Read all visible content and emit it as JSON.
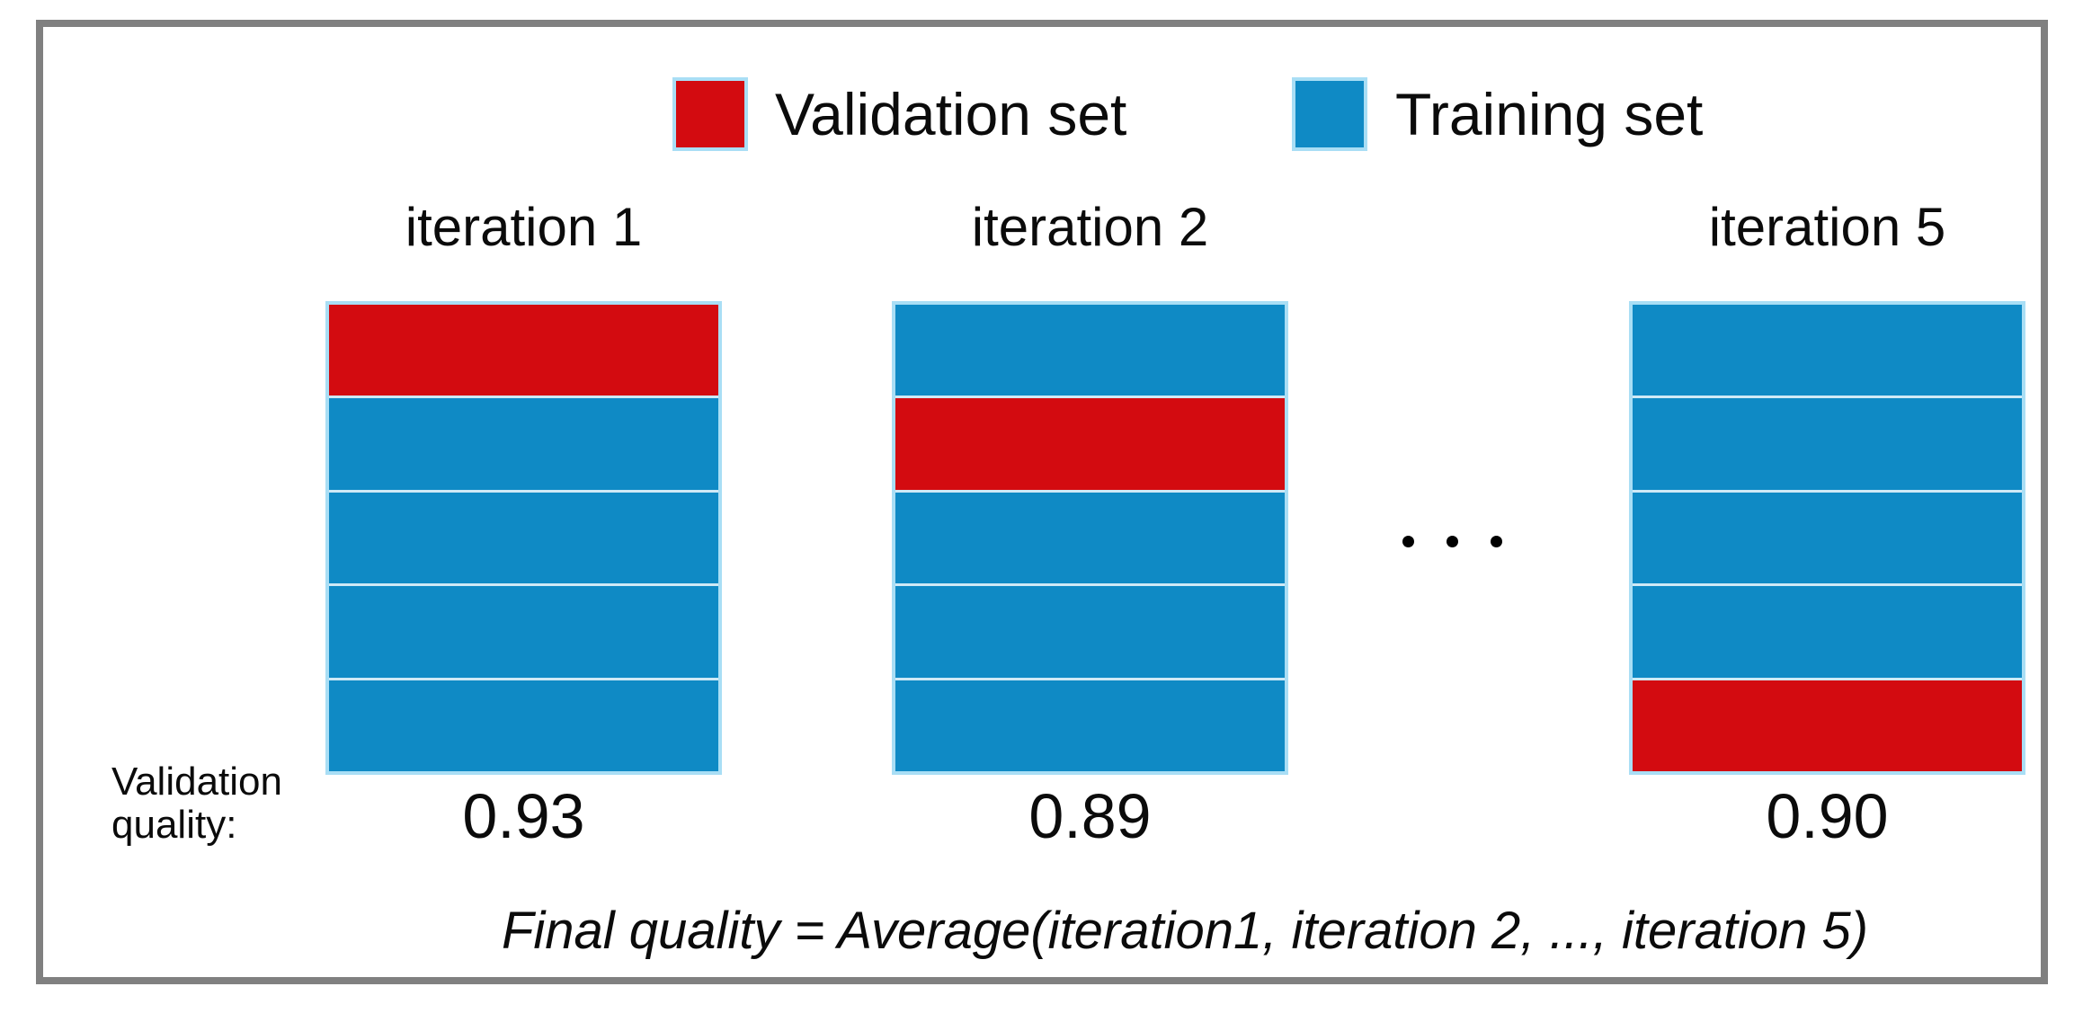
{
  "legend": {
    "items": [
      {
        "label": "Validation set",
        "color_key": "validation"
      },
      {
        "label": "Training set",
        "color_key": "training"
      }
    ]
  },
  "columns": [
    {
      "title": "iteration 1",
      "quality": "0.93",
      "bands": [
        "validation",
        "training",
        "training",
        "training",
        "training"
      ]
    },
    {
      "title": "iteration 2",
      "quality": "0.89",
      "bands": [
        "training",
        "validation",
        "training",
        "training",
        "training"
      ]
    },
    {
      "title": "iteration 5",
      "quality": "0.90",
      "bands": [
        "training",
        "training",
        "training",
        "training",
        "validation"
      ]
    }
  ],
  "separator": {
    "type": "ellipsis-dots",
    "count": 3
  },
  "quality_label": {
    "line1": "Validation",
    "line2": "quality:"
  },
  "formula": "Final quality = Average(iteration1, iteration 2, ..., iteration 5)",
  "colors": {
    "validation": "#d30b10",
    "training": "#0f8ac5",
    "band_outline": "#a9def5",
    "band_separator": "#cfe9f6",
    "frame": "#808080"
  }
}
